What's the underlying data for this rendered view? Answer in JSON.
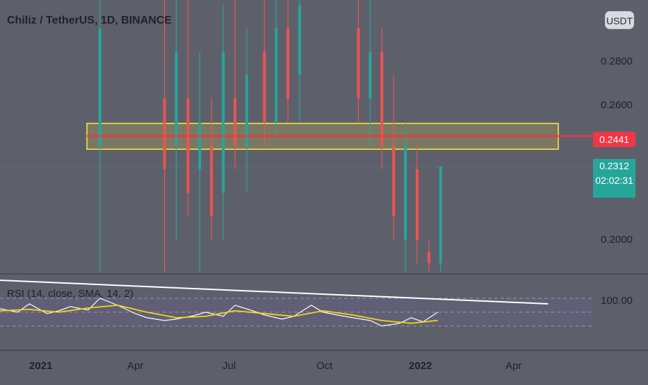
{
  "header": {
    "title": "Chiliz / TetherUS, 1D, BINANCE",
    "currency_button": "USDT"
  },
  "price_tags": {
    "level": "0.2441",
    "last": "0.2312",
    "countdown": "02:02:31"
  },
  "rsi": {
    "label": "RSI (14, close, SMA, 14, 2)"
  },
  "colors": {
    "background": "#5d606b",
    "up_candle": "#26a69a",
    "down_candle": "#ef5350",
    "rsi_line": "#ffffff",
    "rsi_ma": "#f5d90a",
    "level_box": "#ffeb3b",
    "level_line": "#f23645",
    "trendline": "#ffffff"
  },
  "chart_data": [
    {
      "type": "candlestick",
      "title": "Chiliz / TetherUS, 1D, BINANCE",
      "x_ticks": [
        "2021",
        "Apr",
        "Jul",
        "Oct",
        "2022",
        "Apr"
      ],
      "y_ticks": [
        "0.2800",
        "0.2600",
        "0.2000",
        "100.00"
      ],
      "ylim": [
        0.186,
        0.302
      ],
      "annotations": {
        "horizontal_level": 0.2441,
        "last_price": 0.2312,
        "zone": [
          0.2385,
          0.2495
        ]
      },
      "series": [
        {
          "x": 0.17,
          "open": 0.24,
          "high": 0.302,
          "low": 0.186,
          "close": 0.29,
          "dir": "up"
        },
        {
          "x": 0.28,
          "open": 0.26,
          "high": 0.302,
          "low": 0.186,
          "close": 0.23,
          "dir": "down"
        },
        {
          "x": 0.3,
          "open": 0.24,
          "high": 0.302,
          "low": 0.2,
          "close": 0.28,
          "dir": "up"
        },
        {
          "x": 0.32,
          "open": 0.26,
          "high": 0.302,
          "low": 0.21,
          "close": 0.22,
          "dir": "down"
        },
        {
          "x": 0.34,
          "open": 0.23,
          "high": 0.28,
          "low": 0.186,
          "close": 0.25,
          "dir": "up"
        },
        {
          "x": 0.36,
          "open": 0.24,
          "high": 0.26,
          "low": 0.2,
          "close": 0.21,
          "dir": "down"
        },
        {
          "x": 0.38,
          "open": 0.22,
          "high": 0.3,
          "low": 0.2,
          "close": 0.28,
          "dir": "up"
        },
        {
          "x": 0.4,
          "open": 0.26,
          "high": 0.302,
          "low": 0.23,
          "close": 0.24,
          "dir": "down"
        },
        {
          "x": 0.42,
          "open": 0.24,
          "high": 0.29,
          "low": 0.22,
          "close": 0.27,
          "dir": "up"
        },
        {
          "x": 0.45,
          "open": 0.28,
          "high": 0.302,
          "low": 0.24,
          "close": 0.25,
          "dir": "down"
        },
        {
          "x": 0.47,
          "open": 0.25,
          "high": 0.302,
          "low": 0.245,
          "close": 0.29,
          "dir": "up"
        },
        {
          "x": 0.49,
          "open": 0.29,
          "high": 0.302,
          "low": 0.25,
          "close": 0.26,
          "dir": "down"
        },
        {
          "x": 0.51,
          "open": 0.27,
          "high": 0.302,
          "low": 0.25,
          "close": 0.3,
          "dir": "up"
        },
        {
          "x": 0.61,
          "open": 0.29,
          "high": 0.302,
          "low": 0.25,
          "close": 0.26,
          "dir": "down"
        },
        {
          "x": 0.63,
          "open": 0.26,
          "high": 0.302,
          "low": 0.24,
          "close": 0.28,
          "dir": "up"
        },
        {
          "x": 0.65,
          "open": 0.28,
          "high": 0.29,
          "low": 0.23,
          "close": 0.24,
          "dir": "down"
        },
        {
          "x": 0.67,
          "open": 0.24,
          "high": 0.27,
          "low": 0.2,
          "close": 0.21,
          "dir": "down"
        },
        {
          "x": 0.69,
          "open": 0.2,
          "high": 0.25,
          "low": 0.186,
          "close": 0.24,
          "dir": "up"
        },
        {
          "x": 0.71,
          "open": 0.23,
          "high": 0.24,
          "low": 0.19,
          "close": 0.2,
          "dir": "down"
        },
        {
          "x": 0.73,
          "open": 0.19,
          "high": 0.2,
          "low": 0.186,
          "close": 0.195,
          "dir": "down"
        },
        {
          "x": 0.75,
          "open": 0.19,
          "high": 0.2312,
          "low": 0.186,
          "close": 0.2312,
          "dir": "up"
        }
      ]
    },
    {
      "type": "line",
      "title": "RSI (14, close, SMA, 14, 2)",
      "series": [
        {
          "name": "RSI",
          "x": [
            0.0,
            0.03,
            0.05,
            0.08,
            0.1,
            0.12,
            0.15,
            0.17,
            0.2,
            0.23,
            0.25,
            0.28,
            0.3,
            0.33,
            0.35,
            0.38,
            0.4,
            0.43,
            0.45,
            0.48,
            0.5,
            0.53,
            0.55,
            0.58,
            0.6,
            0.63,
            0.65,
            0.68,
            0.7,
            0.72,
            0.745
          ],
          "y": [
            55,
            50,
            62,
            48,
            52,
            58,
            53,
            70,
            60,
            48,
            42,
            38,
            40,
            45,
            50,
            44,
            60,
            52,
            46,
            40,
            44,
            60,
            50,
            45,
            42,
            38,
            30,
            34,
            42,
            36,
            50
          ]
        },
        {
          "name": "RSI MA",
          "x": [
            0.0,
            0.05,
            0.1,
            0.15,
            0.2,
            0.25,
            0.3,
            0.35,
            0.4,
            0.45,
            0.5,
            0.55,
            0.6,
            0.65,
            0.7,
            0.745
          ],
          "y": [
            52,
            54,
            50,
            56,
            60,
            50,
            42,
            44,
            52,
            48,
            44,
            52,
            46,
            38,
            34,
            38
          ]
        }
      ],
      "annotations": {
        "trendline": {
          "start": [
            0.0,
            96
          ],
          "end": [
            0.85,
            62
          ]
        },
        "bands": [
          70,
          50,
          30
        ]
      }
    }
  ]
}
